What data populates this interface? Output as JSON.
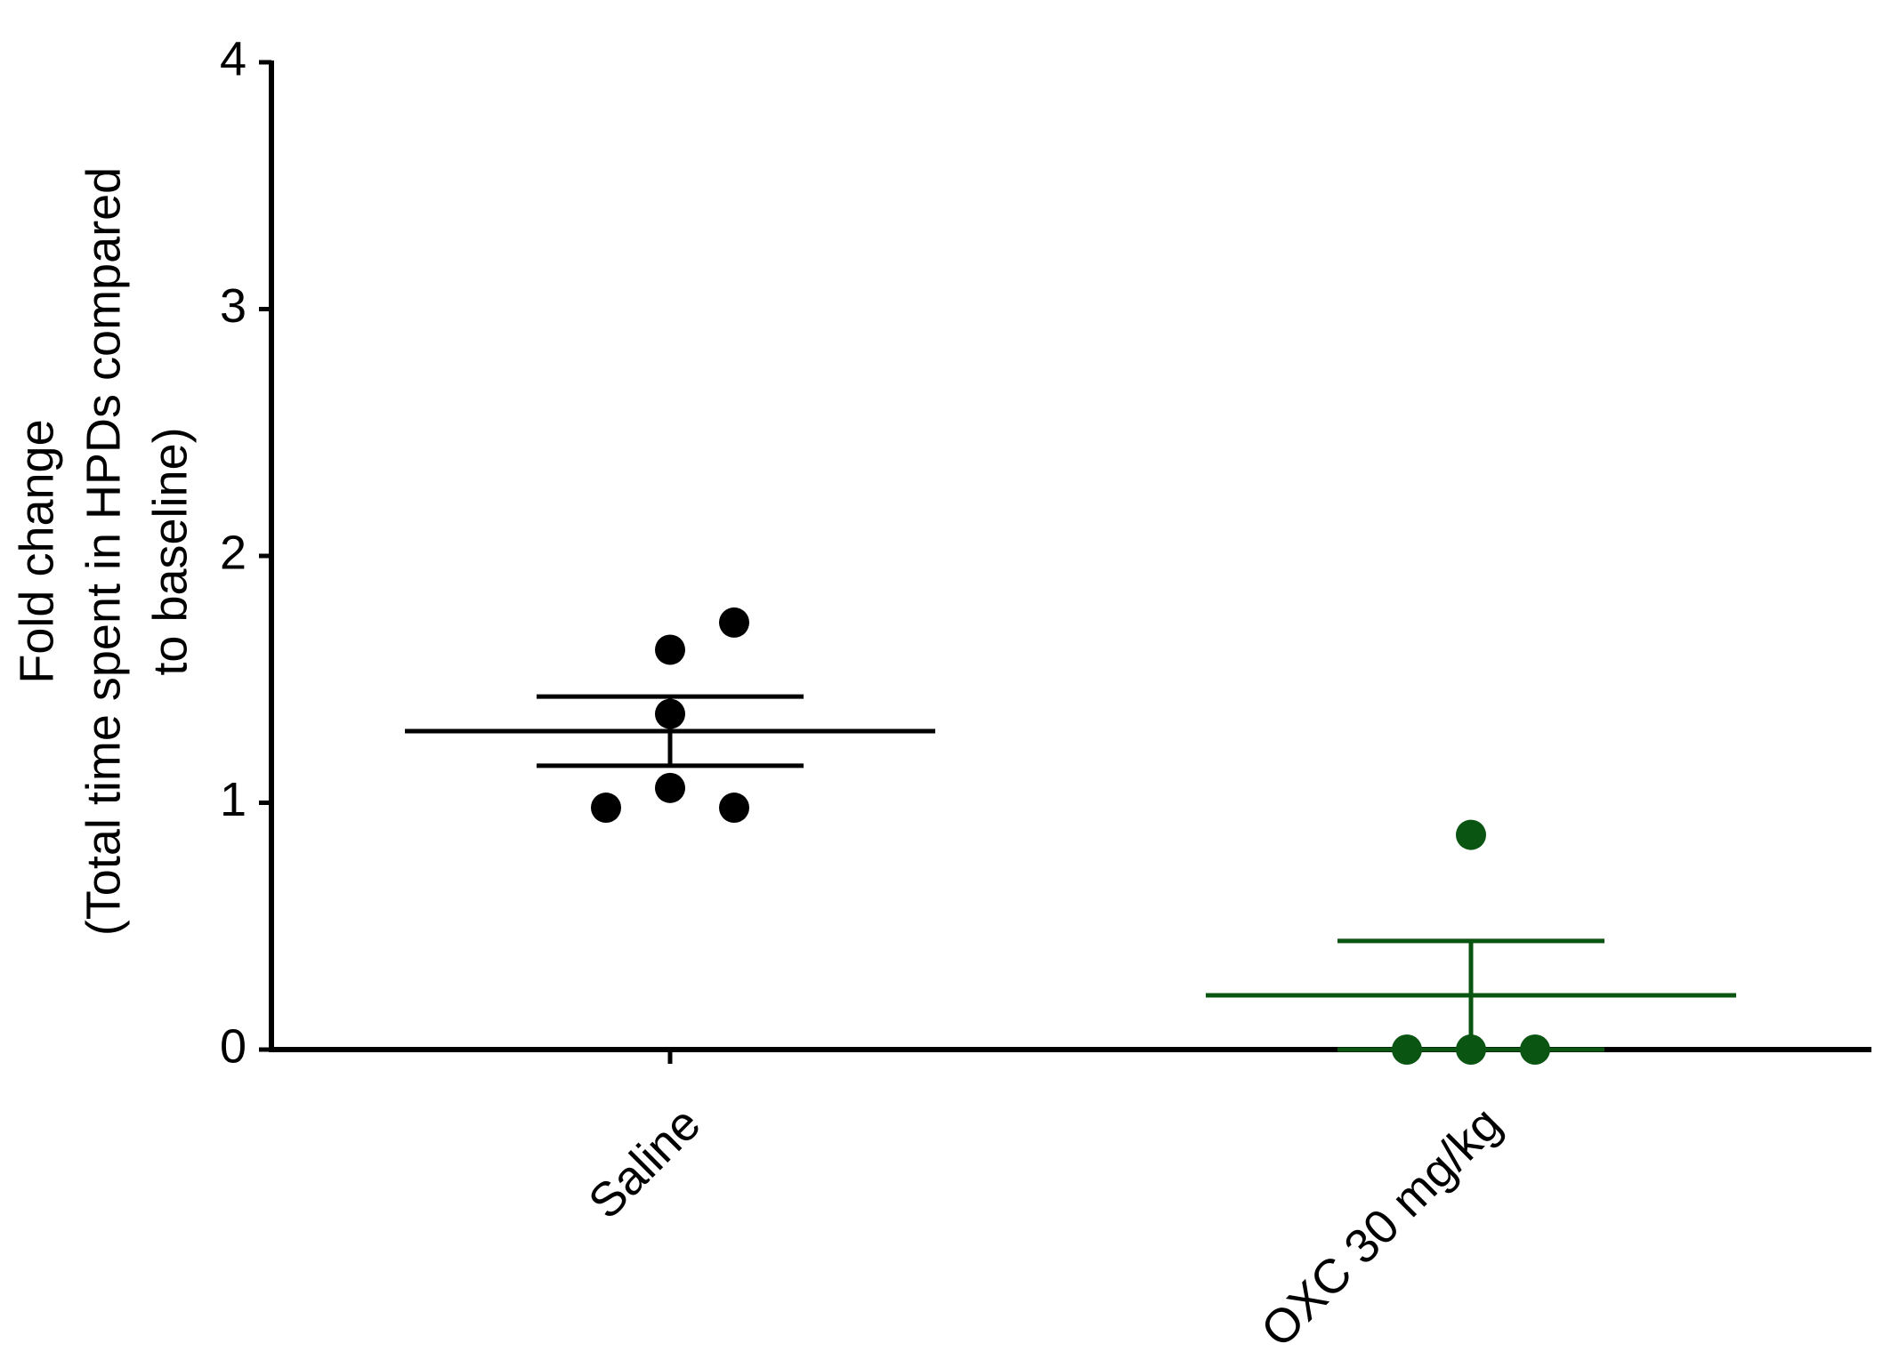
{
  "chart_data": {
    "type": "dot",
    "ylabel": [
      "Fold change",
      "(Total time spent in HPDs compared",
      "to baseline)"
    ],
    "categories": [
      "Saline",
      "OXC 30 mg/kg"
    ],
    "points": [
      [
        1.73,
        1.62,
        1.36,
        1.06,
        0.98,
        0.98
      ],
      [
        0.87,
        0,
        0,
        0
      ]
    ],
    "means": [
      1.29,
      0.22
    ],
    "sem": [
      0.14,
      0.22
    ],
    "colors": [
      "#000000",
      "#0b5512"
    ],
    "ylim": [
      0,
      4
    ],
    "yticks": [
      0,
      1,
      2,
      3,
      4
    ]
  }
}
